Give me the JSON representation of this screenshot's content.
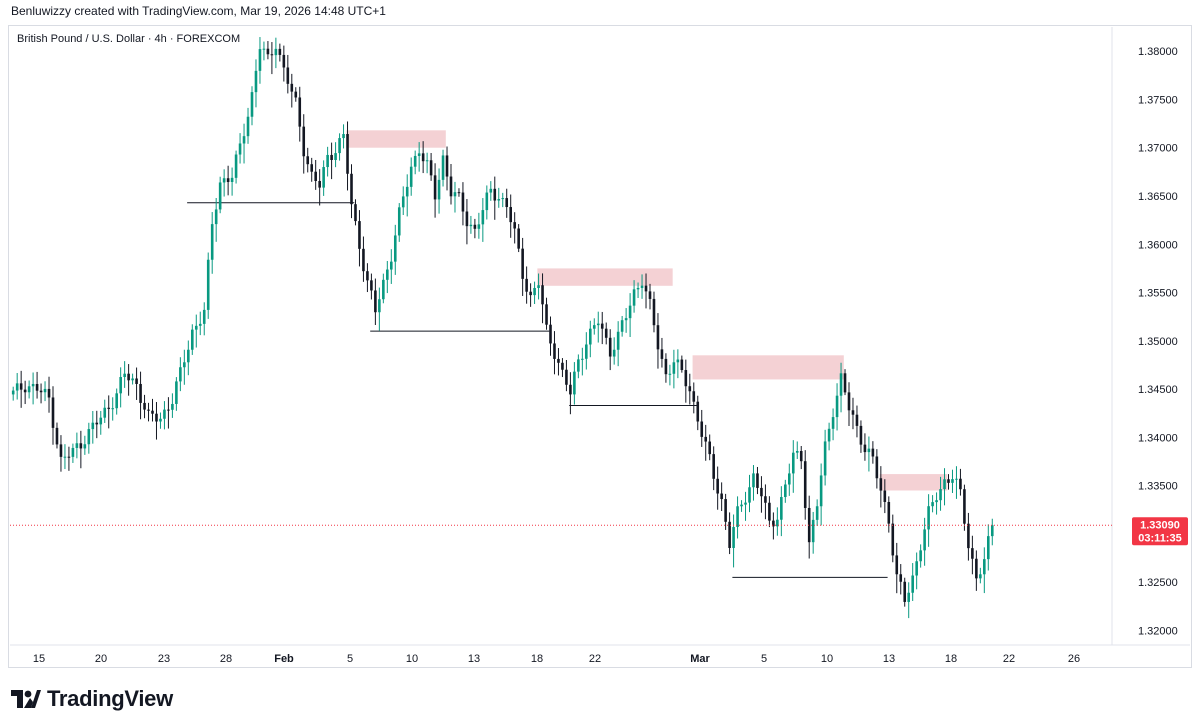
{
  "header": {
    "attribution": "Benluwizzy created with TradingView.com, Mar 19, 2026 14:48 UTC+1"
  },
  "symbol": {
    "title": "British Pound / U.S. Dollar · 4h · FOREXCOM"
  },
  "brand": {
    "name": "TradingView",
    "icon": "tradingview-logo-icon"
  },
  "colors": {
    "up": "#089981",
    "down": "#131722",
    "zone": "#f2c9cc",
    "last_price": "#f23645",
    "line": "#131722",
    "grid": "#e0e3eb"
  },
  "chart_data": {
    "type": "candlestick",
    "title": "British Pound / U.S. Dollar · 4h · FOREXCOM",
    "timeframe": "4h",
    "x_ticks": [
      "15",
      "20",
      "23",
      "28",
      "Feb",
      "5",
      "10",
      "13",
      "18",
      "22",
      "Mar",
      "5",
      "10",
      "13",
      "18",
      "22",
      "26"
    ],
    "y_ticks": [
      "1.38000",
      "1.37500",
      "1.37000",
      "1.36500",
      "1.36000",
      "1.35500",
      "1.35000",
      "1.34500",
      "1.34000",
      "1.33500",
      "1.33000",
      "1.32500",
      "1.32000"
    ],
    "ylim": [
      1.3185,
      1.3825
    ],
    "last_price": {
      "value": "1.33090",
      "countdown": "03:11:35"
    },
    "price_path": [
      [
        0,
        1.3445
      ],
      [
        3,
        1.3455
      ],
      [
        6,
        1.345
      ],
      [
        9,
        1.344
      ],
      [
        12,
        1.3375
      ],
      [
        15,
        1.3385
      ],
      [
        18,
        1.34
      ],
      [
        22,
        1.342
      ],
      [
        26,
        1.3445
      ],
      [
        28,
        1.3465
      ],
      [
        31,
        1.3455
      ],
      [
        34,
        1.342
      ],
      [
        37,
        1.342
      ],
      [
        40,
        1.344
      ],
      [
        42,
        1.3465
      ],
      [
        45,
        1.351
      ],
      [
        48,
        1.353
      ],
      [
        50,
        1.362
      ],
      [
        52,
        1.3665
      ],
      [
        55,
        1.367
      ],
      [
        57,
        1.37
      ],
      [
        60,
        1.3755
      ],
      [
        62,
        1.3805
      ],
      [
        64,
        1.379
      ],
      [
        66,
        1.381
      ],
      [
        68,
        1.378
      ],
      [
        71,
        1.3745
      ],
      [
        73,
        1.37
      ],
      [
        75,
        1.367
      ],
      [
        77,
        1.366
      ],
      [
        79,
        1.369
      ],
      [
        81,
        1.37
      ],
      [
        83,
        1.371
      ],
      [
        85,
        1.364
      ],
      [
        87,
        1.36
      ],
      [
        89,
        1.356
      ],
      [
        91,
        1.353
      ],
      [
        93,
        1.356
      ],
      [
        95,
        1.359
      ],
      [
        97,
        1.363
      ],
      [
        100,
        1.368
      ],
      [
        102,
        1.37
      ],
      [
        104,
        1.368
      ],
      [
        106,
        1.365
      ],
      [
        108,
        1.369
      ],
      [
        110,
        1.3655
      ],
      [
        112,
        1.3645
      ],
      [
        114,
        1.3625
      ],
      [
        116,
        1.3615
      ],
      [
        118,
        1.3635
      ],
      [
        120,
        1.3655
      ],
      [
        122,
        1.365
      ],
      [
        124,
        1.364
      ],
      [
        126,
        1.361
      ],
      [
        128,
        1.357
      ],
      [
        130,
        1.3545
      ],
      [
        132,
        1.356
      ],
      [
        134,
        1.351
      ],
      [
        136,
        1.349
      ],
      [
        138,
        1.3465
      ],
      [
        140,
        1.3445
      ],
      [
        142,
        1.348
      ],
      [
        144,
        1.35
      ],
      [
        147,
        1.352
      ],
      [
        150,
        1.349
      ],
      [
        152,
        1.3505
      ],
      [
        154,
        1.3525
      ],
      [
        156,
        1.355
      ],
      [
        158,
        1.3565
      ],
      [
        160,
        1.3535
      ],
      [
        162,
        1.3495
      ],
      [
        164,
        1.3465
      ],
      [
        166,
        1.348
      ],
      [
        168,
        1.3465
      ],
      [
        170,
        1.345
      ],
      [
        172,
        1.342
      ],
      [
        174,
        1.339
      ],
      [
        176,
        1.336
      ],
      [
        178,
        1.3335
      ],
      [
        180,
        1.329
      ],
      [
        182,
        1.332
      ],
      [
        184,
        1.334
      ],
      [
        186,
        1.336
      ],
      [
        188,
        1.334
      ],
      [
        190,
        1.331
      ],
      [
        192,
        1.332
      ],
      [
        194,
        1.335
      ],
      [
        196,
        1.338
      ],
      [
        198,
        1.338
      ],
      [
        200,
        1.329
      ],
      [
        202,
        1.333
      ],
      [
        204,
        1.339
      ],
      [
        206,
        1.343
      ],
      [
        208,
        1.346
      ],
      [
        210,
        1.343
      ],
      [
        212,
        1.341
      ],
      [
        214,
        1.339
      ],
      [
        216,
        1.3375
      ],
      [
        218,
        1.3345
      ],
      [
        220,
        1.3315
      ],
      [
        222,
        1.3255
      ],
      [
        224,
        1.323
      ],
      [
        226,
        1.3255
      ],
      [
        228,
        1.329
      ],
      [
        230,
        1.332
      ],
      [
        232,
        1.334
      ],
      [
        234,
        1.3355
      ],
      [
        236,
        1.336
      ],
      [
        238,
        1.334
      ],
      [
        240,
        1.329
      ],
      [
        242,
        1.3255
      ],
      [
        244,
        1.327
      ],
      [
        246,
        1.3309
      ]
    ],
    "supply_zones": [
      {
        "from": 84,
        "to": 109,
        "top": 1.3718,
        "bottom": 1.37
      },
      {
        "from": 132,
        "to": 166,
        "top": 1.3575,
        "bottom": 1.3557
      },
      {
        "from": 171,
        "to": 209,
        "top": 1.3485,
        "bottom": 1.346
      },
      {
        "from": 218,
        "to": 235,
        "top": 1.3362,
        "bottom": 1.3345
      }
    ],
    "support_lines": [
      {
        "from": 44,
        "to": 86,
        "price": 1.3643
      },
      {
        "from": 90,
        "to": 135,
        "price": 1.351
      },
      {
        "from": 140,
        "to": 172,
        "price": 1.3433
      },
      {
        "from": 181,
        "to": 220,
        "price": 1.3255
      }
    ],
    "grid": false,
    "legend": "none"
  }
}
